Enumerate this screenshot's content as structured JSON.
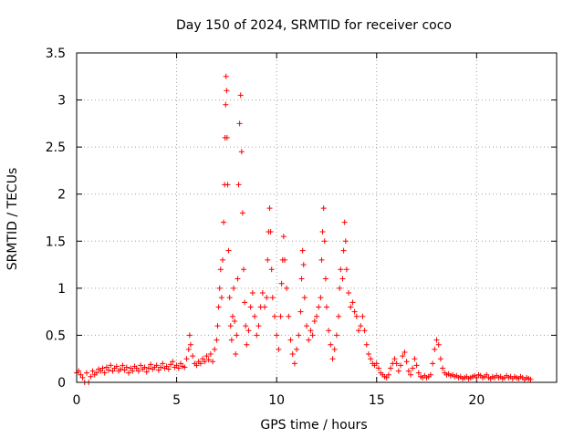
{
  "chart_data": {
    "type": "scatter",
    "title": "Day 150 of 2024, SRMTID for receiver coco",
    "xlabel": "GPS time / hours",
    "ylabel": "SRMTID / TECUs",
    "xlim": [
      0,
      24
    ],
    "ylim": [
      0,
      3.5
    ],
    "xticks": [
      0,
      5,
      10,
      15,
      20
    ],
    "xtick_labels": [
      "0",
      "5",
      "10",
      "15",
      "20"
    ],
    "yticks": [
      0,
      0.5,
      1,
      1.5,
      2,
      2.5,
      3,
      3.5
    ],
    "ytick_labels": [
      "0",
      "0.5",
      "1",
      "1.5",
      "2",
      "2.5",
      "3",
      "3.5"
    ],
    "grid": true,
    "marker": "+",
    "series": [
      {
        "name": "SRMTID",
        "color": "#ff0000",
        "points": [
          [
            0.0,
            0.1
          ],
          [
            0.1,
            0.12
          ],
          [
            0.2,
            0.08
          ],
          [
            0.3,
            0.05
          ],
          [
            0.4,
            0.0
          ],
          [
            0.5,
            0.1
          ],
          [
            0.6,
            0.0
          ],
          [
            0.7,
            0.06
          ],
          [
            0.8,
            0.12
          ],
          [
            0.9,
            0.08
          ],
          [
            1.0,
            0.1
          ],
          [
            1.1,
            0.14
          ],
          [
            1.2,
            0.12
          ],
          [
            1.3,
            0.15
          ],
          [
            1.4,
            0.1
          ],
          [
            1.5,
            0.16
          ],
          [
            1.6,
            0.13
          ],
          [
            1.7,
            0.18
          ],
          [
            1.8,
            0.12
          ],
          [
            1.9,
            0.15
          ],
          [
            2.0,
            0.17
          ],
          [
            2.1,
            0.12
          ],
          [
            2.2,
            0.14
          ],
          [
            2.3,
            0.18
          ],
          [
            2.4,
            0.13
          ],
          [
            2.5,
            0.16
          ],
          [
            2.6,
            0.1
          ],
          [
            2.7,
            0.15
          ],
          [
            2.8,
            0.12
          ],
          [
            2.9,
            0.17
          ],
          [
            3.0,
            0.15
          ],
          [
            3.1,
            0.12
          ],
          [
            3.2,
            0.18
          ],
          [
            3.3,
            0.14
          ],
          [
            3.4,
            0.16
          ],
          [
            3.5,
            0.11
          ],
          [
            3.6,
            0.15
          ],
          [
            3.7,
            0.19
          ],
          [
            3.8,
            0.14
          ],
          [
            3.9,
            0.16
          ],
          [
            4.0,
            0.18
          ],
          [
            4.1,
            0.13
          ],
          [
            4.2,
            0.16
          ],
          [
            4.3,
            0.2
          ],
          [
            4.4,
            0.15
          ],
          [
            4.5,
            0.17
          ],
          [
            4.6,
            0.14
          ],
          [
            4.7,
            0.19
          ],
          [
            4.8,
            0.22
          ],
          [
            4.9,
            0.16
          ],
          [
            5.0,
            0.18
          ],
          [
            5.1,
            0.15
          ],
          [
            5.2,
            0.2
          ],
          [
            5.3,
            0.17
          ],
          [
            5.4,
            0.16
          ],
          [
            5.5,
            0.25
          ],
          [
            5.6,
            0.35
          ],
          [
            5.65,
            0.5
          ],
          [
            5.7,
            0.4
          ],
          [
            5.8,
            0.28
          ],
          [
            5.9,
            0.2
          ],
          [
            6.0,
            0.18
          ],
          [
            6.1,
            0.22
          ],
          [
            6.2,
            0.2
          ],
          [
            6.3,
            0.25
          ],
          [
            6.4,
            0.22
          ],
          [
            6.5,
            0.28
          ],
          [
            6.6,
            0.24
          ],
          [
            6.7,
            0.3
          ],
          [
            6.8,
            0.22
          ],
          [
            6.9,
            0.35
          ],
          [
            7.0,
            0.45
          ],
          [
            7.05,
            0.6
          ],
          [
            7.1,
            0.8
          ],
          [
            7.15,
            1.0
          ],
          [
            7.2,
            1.2
          ],
          [
            7.25,
            0.9
          ],
          [
            7.3,
            1.3
          ],
          [
            7.35,
            1.7
          ],
          [
            7.4,
            2.1
          ],
          [
            7.42,
            2.6
          ],
          [
            7.45,
            2.95
          ],
          [
            7.47,
            3.25
          ],
          [
            7.5,
            3.1
          ],
          [
            7.52,
            2.6
          ],
          [
            7.55,
            2.1
          ],
          [
            7.6,
            1.4
          ],
          [
            7.65,
            0.9
          ],
          [
            7.7,
            0.6
          ],
          [
            7.75,
            0.45
          ],
          [
            7.8,
            0.7
          ],
          [
            7.85,
            1.0
          ],
          [
            7.9,
            0.65
          ],
          [
            7.95,
            0.3
          ],
          [
            8.0,
            0.5
          ],
          [
            8.05,
            1.1
          ],
          [
            8.1,
            2.1
          ],
          [
            8.15,
            2.75
          ],
          [
            8.2,
            3.05
          ],
          [
            8.25,
            2.45
          ],
          [
            8.3,
            1.8
          ],
          [
            8.35,
            1.2
          ],
          [
            8.4,
            0.85
          ],
          [
            8.45,
            0.6
          ],
          [
            8.5,
            0.4
          ],
          [
            8.6,
            0.55
          ],
          [
            8.7,
            0.8
          ],
          [
            8.8,
            0.95
          ],
          [
            8.9,
            0.7
          ],
          [
            9.0,
            0.5
          ],
          [
            9.1,
            0.6
          ],
          [
            9.2,
            0.8
          ],
          [
            9.3,
            0.95
          ],
          [
            9.4,
            0.8
          ],
          [
            9.5,
            0.9
          ],
          [
            9.55,
            1.3
          ],
          [
            9.6,
            1.6
          ],
          [
            9.65,
            1.85
          ],
          [
            9.7,
            1.6
          ],
          [
            9.75,
            1.2
          ],
          [
            9.8,
            0.9
          ],
          [
            9.9,
            0.7
          ],
          [
            10.0,
            0.5
          ],
          [
            10.1,
            0.35
          ],
          [
            10.2,
            0.7
          ],
          [
            10.25,
            1.05
          ],
          [
            10.3,
            1.3
          ],
          [
            10.35,
            1.55
          ],
          [
            10.4,
            1.3
          ],
          [
            10.5,
            1.0
          ],
          [
            10.6,
            0.7
          ],
          [
            10.7,
            0.45
          ],
          [
            10.8,
            0.3
          ],
          [
            10.9,
            0.2
          ],
          [
            11.0,
            0.35
          ],
          [
            11.1,
            0.5
          ],
          [
            11.2,
            0.75
          ],
          [
            11.25,
            1.1
          ],
          [
            11.3,
            1.4
          ],
          [
            11.35,
            1.25
          ],
          [
            11.4,
            0.9
          ],
          [
            11.5,
            0.6
          ],
          [
            11.6,
            0.45
          ],
          [
            11.7,
            0.55
          ],
          [
            11.8,
            0.5
          ],
          [
            11.9,
            0.65
          ],
          [
            12.0,
            0.7
          ],
          [
            12.1,
            0.8
          ],
          [
            12.2,
            0.9
          ],
          [
            12.25,
            1.3
          ],
          [
            12.3,
            1.6
          ],
          [
            12.35,
            1.85
          ],
          [
            12.4,
            1.5
          ],
          [
            12.45,
            1.1
          ],
          [
            12.5,
            0.8
          ],
          [
            12.6,
            0.55
          ],
          [
            12.7,
            0.4
          ],
          [
            12.8,
            0.25
          ],
          [
            12.9,
            0.35
          ],
          [
            13.0,
            0.5
          ],
          [
            13.1,
            0.7
          ],
          [
            13.15,
            1.0
          ],
          [
            13.2,
            1.2
          ],
          [
            13.3,
            1.1
          ],
          [
            13.35,
            1.4
          ],
          [
            13.4,
            1.7
          ],
          [
            13.45,
            1.5
          ],
          [
            13.5,
            1.2
          ],
          [
            13.6,
            0.95
          ],
          [
            13.7,
            0.8
          ],
          [
            13.8,
            0.85
          ],
          [
            13.9,
            0.75
          ],
          [
            14.0,
            0.7
          ],
          [
            14.1,
            0.55
          ],
          [
            14.2,
            0.6
          ],
          [
            14.3,
            0.7
          ],
          [
            14.4,
            0.55
          ],
          [
            14.5,
            0.4
          ],
          [
            14.6,
            0.3
          ],
          [
            14.7,
            0.25
          ],
          [
            14.8,
            0.2
          ],
          [
            14.9,
            0.18
          ],
          [
            15.0,
            0.2
          ],
          [
            15.1,
            0.15
          ],
          [
            15.2,
            0.1
          ],
          [
            15.3,
            0.08
          ],
          [
            15.4,
            0.06
          ],
          [
            15.5,
            0.05
          ],
          [
            15.6,
            0.08
          ],
          [
            15.7,
            0.15
          ],
          [
            15.8,
            0.2
          ],
          [
            15.9,
            0.25
          ],
          [
            16.0,
            0.2
          ],
          [
            16.1,
            0.12
          ],
          [
            16.2,
            0.18
          ],
          [
            16.3,
            0.28
          ],
          [
            16.4,
            0.32
          ],
          [
            16.5,
            0.22
          ],
          [
            16.6,
            0.12
          ],
          [
            16.7,
            0.08
          ],
          [
            16.8,
            0.15
          ],
          [
            16.9,
            0.25
          ],
          [
            17.0,
            0.18
          ],
          [
            17.1,
            0.1
          ],
          [
            17.2,
            0.06
          ],
          [
            17.3,
            0.05
          ],
          [
            17.4,
            0.07
          ],
          [
            17.5,
            0.05
          ],
          [
            17.6,
            0.06
          ],
          [
            17.7,
            0.08
          ],
          [
            17.8,
            0.2
          ],
          [
            17.9,
            0.35
          ],
          [
            18.0,
            0.45
          ],
          [
            18.1,
            0.4
          ],
          [
            18.2,
            0.25
          ],
          [
            18.3,
            0.15
          ],
          [
            18.4,
            0.1
          ],
          [
            18.5,
            0.08
          ],
          [
            18.6,
            0.09
          ],
          [
            18.7,
            0.07
          ],
          [
            18.8,
            0.08
          ],
          [
            18.9,
            0.06
          ],
          [
            19.0,
            0.07
          ],
          [
            19.1,
            0.05
          ],
          [
            19.2,
            0.06
          ],
          [
            19.3,
            0.04
          ],
          [
            19.4,
            0.05
          ],
          [
            19.5,
            0.06
          ],
          [
            19.6,
            0.04
          ],
          [
            19.7,
            0.05
          ],
          [
            19.8,
            0.06
          ],
          [
            19.9,
            0.07
          ],
          [
            20.0,
            0.05
          ],
          [
            20.1,
            0.08
          ],
          [
            20.2,
            0.07
          ],
          [
            20.3,
            0.05
          ],
          [
            20.4,
            0.06
          ],
          [
            20.5,
            0.08
          ],
          [
            20.6,
            0.05
          ],
          [
            20.7,
            0.04
          ],
          [
            20.8,
            0.06
          ],
          [
            20.9,
            0.05
          ],
          [
            21.0,
            0.07
          ],
          [
            21.1,
            0.05
          ],
          [
            21.2,
            0.06
          ],
          [
            21.3,
            0.04
          ],
          [
            21.4,
            0.05
          ],
          [
            21.5,
            0.07
          ],
          [
            21.6,
            0.05
          ],
          [
            21.7,
            0.06
          ],
          [
            21.8,
            0.04
          ],
          [
            21.9,
            0.06
          ],
          [
            22.0,
            0.05
          ],
          [
            22.1,
            0.04
          ],
          [
            22.2,
            0.06
          ],
          [
            22.3,
            0.05
          ],
          [
            22.4,
            0.03
          ],
          [
            22.5,
            0.05
          ],
          [
            22.6,
            0.04
          ],
          [
            22.7,
            0.03
          ]
        ]
      }
    ]
  }
}
